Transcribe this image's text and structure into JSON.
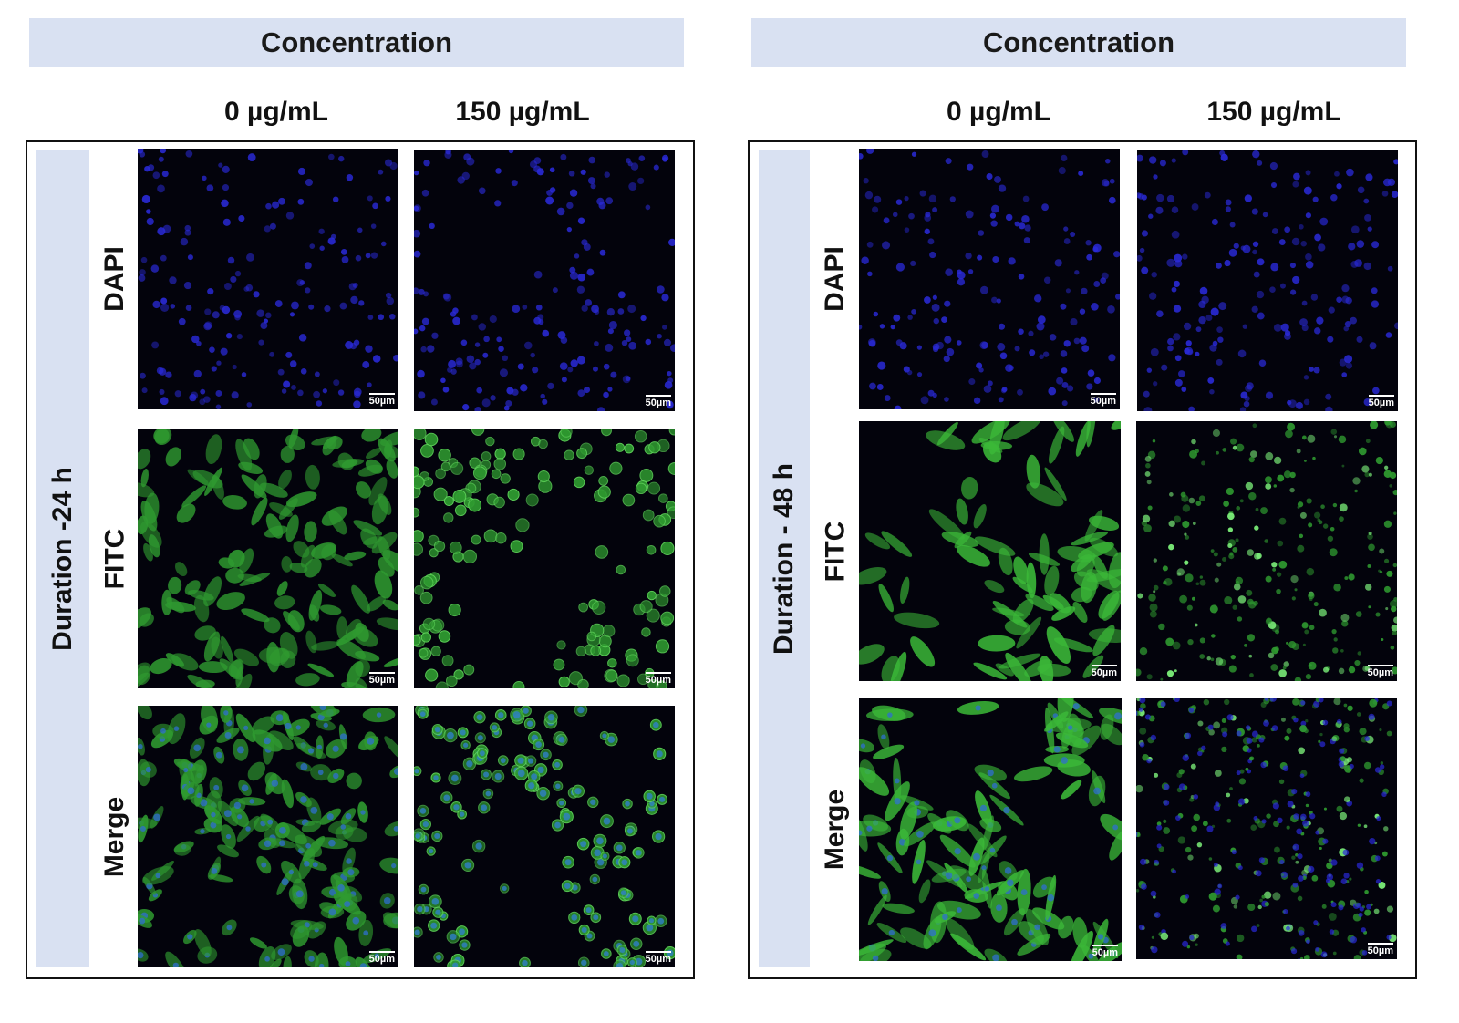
{
  "panels": [
    {
      "header": "Concentration",
      "columns": [
        "0 µg/mL",
        "150 µg/mL"
      ],
      "duration": "Duration -24 h",
      "rows": [
        "DAPI",
        "FITC",
        "Merge"
      ]
    },
    {
      "header": "Concentration",
      "columns": [
        "0 µg/mL",
        "150 µg/mL"
      ],
      "duration": "Duration - 48 h",
      "rows": [
        "DAPI",
        "FITC",
        "Merge"
      ]
    }
  ],
  "scale_bar": "50µm",
  "colors": {
    "header_fill": "#d9e1f2",
    "dapi": "#2a2ad8",
    "fitc": "#3fbf3a",
    "merge_nucleus": "#2f6fd0"
  }
}
